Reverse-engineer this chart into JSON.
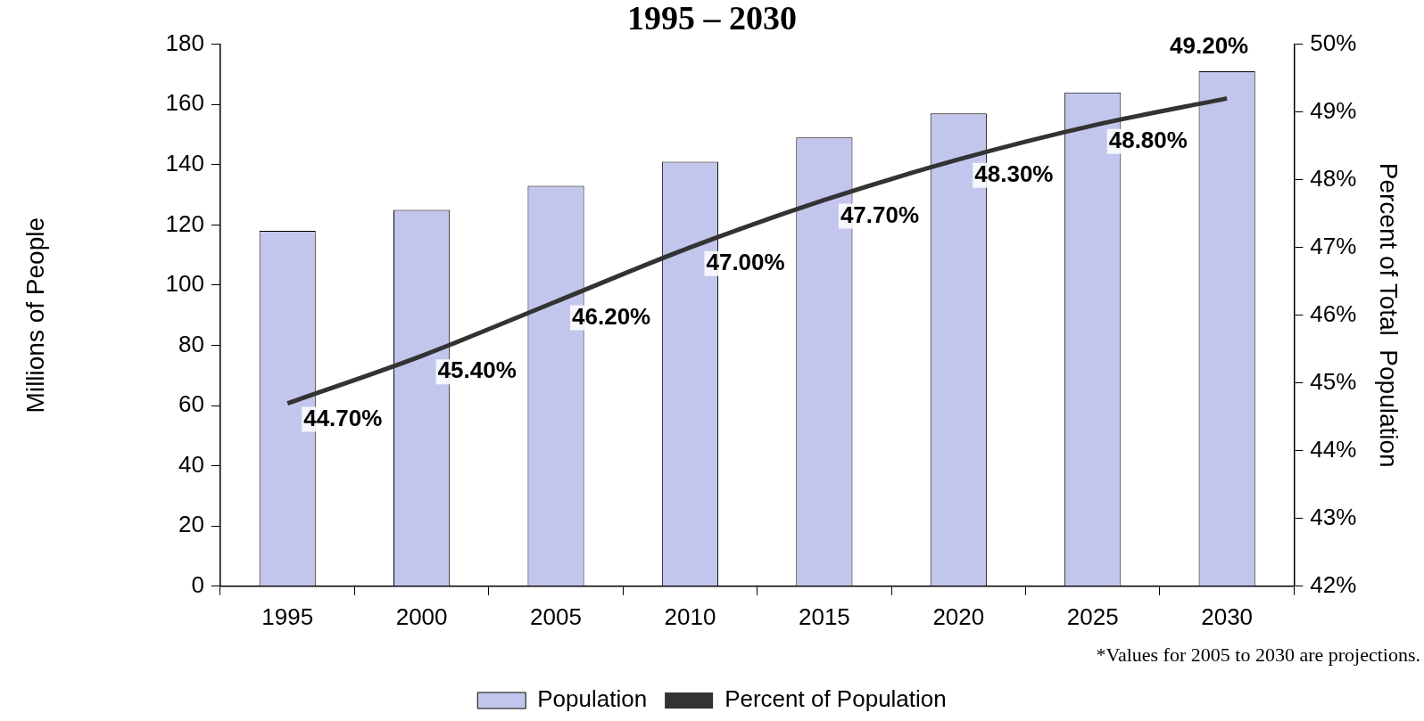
{
  "chart_data": {
    "type": "bar",
    "title": "1995 – 2030",
    "ylabel": "Millions of People",
    "y2label": "Percent of Total  Population",
    "categories": [
      "1995",
      "2000",
      "2005",
      "2010",
      "2015",
      "2020",
      "2025",
      "2030"
    ],
    "series": [
      {
        "name": "Population",
        "color": "#c3c6ec",
        "values": [
          118,
          125,
          133,
          141,
          149,
          157,
          164,
          171
        ]
      },
      {
        "name": "Percent of Population",
        "type": "line",
        "axis": "y2",
        "color": "#333333",
        "values": [
          44.7,
          45.4,
          46.2,
          47.0,
          47.7,
          48.3,
          48.8,
          49.2
        ],
        "value_labels": [
          "44.70%",
          "45.40%",
          "46.20%",
          "47.00%",
          "47.70%",
          "48.30%",
          "48.80%",
          "49.20%"
        ]
      }
    ],
    "ylim": [
      0,
      180
    ],
    "yticks": [
      0,
      20,
      40,
      60,
      80,
      100,
      120,
      140,
      160,
      180
    ],
    "y2lim": [
      42,
      50
    ],
    "y2ticks": [
      {
        "value": 42,
        "label": "42%"
      },
      {
        "value": 43,
        "label": "43%"
      },
      {
        "value": 44,
        "label": "44%"
      },
      {
        "value": 45,
        "label": "45%"
      },
      {
        "value": 46,
        "label": "46%"
      },
      {
        "value": 47,
        "label": "47%"
      },
      {
        "value": 48,
        "label": "48%"
      },
      {
        "value": 49,
        "label": "49%"
      },
      {
        "value": 50,
        "label": "50%"
      }
    ],
    "grid": false,
    "legend": "bottom",
    "marker": "none",
    "line_style": "solid",
    "annotations": [
      "*Values for 2005 to 2030 are projections."
    ]
  }
}
